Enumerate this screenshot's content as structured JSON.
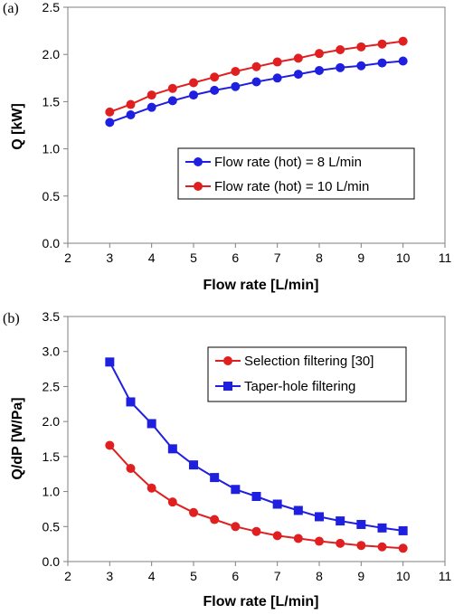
{
  "chart_data": [
    {
      "panel": "(a)",
      "type": "line",
      "xlabel": "Flow rate [L/min]",
      "ylabel": "Q [kW]",
      "xlim": [
        2,
        11
      ],
      "ylim": [
        0.0,
        2.5
      ],
      "xticks": [
        "2",
        "3",
        "4",
        "5",
        "6",
        "7",
        "8",
        "9",
        "10",
        "11"
      ],
      "yticks": [
        "0.0",
        "0.5",
        "1.0",
        "1.5",
        "2.0",
        "2.5"
      ],
      "grid": false,
      "legend_position": "lower-right",
      "x": [
        3.0,
        3.5,
        4.0,
        4.5,
        5.0,
        5.5,
        6.0,
        6.5,
        7.0,
        7.5,
        8.0,
        8.5,
        9.0,
        9.5,
        10.0
      ],
      "series": [
        {
          "name": "Flow rate (hot) = 8 L/min",
          "color": "#1f1fe0",
          "marker": "circle",
          "values": [
            1.28,
            1.36,
            1.44,
            1.51,
            1.57,
            1.62,
            1.66,
            1.71,
            1.75,
            1.79,
            1.83,
            1.86,
            1.88,
            1.91,
            1.93
          ]
        },
        {
          "name": "Flow rate (hot) = 10 L/min",
          "color": "#e02020",
          "marker": "circle",
          "values": [
            1.39,
            1.47,
            1.57,
            1.64,
            1.7,
            1.76,
            1.82,
            1.87,
            1.92,
            1.96,
            2.01,
            2.05,
            2.08,
            2.11,
            2.14
          ]
        }
      ]
    },
    {
      "panel": "(b)",
      "type": "line",
      "xlabel": "Flow rate [L/min]",
      "ylabel": "Q/dP [W/Pa]",
      "xlim": [
        2,
        11
      ],
      "ylim": [
        0.0,
        3.5
      ],
      "xticks": [
        "2",
        "3",
        "4",
        "5",
        "6",
        "7",
        "8",
        "9",
        "10",
        "11"
      ],
      "yticks": [
        "0.0",
        "0.5",
        "1.0",
        "1.5",
        "2.0",
        "2.5",
        "3.0",
        "3.5"
      ],
      "grid": false,
      "legend_position": "top-right",
      "x": [
        3.0,
        3.5,
        4.0,
        4.5,
        5.0,
        5.5,
        6.0,
        6.5,
        7.0,
        7.5,
        8.0,
        8.5,
        9.0,
        9.5,
        10.0
      ],
      "series": [
        {
          "name": "Selection filtering [30]",
          "color": "#e02020",
          "marker": "circle",
          "values": [
            1.66,
            1.33,
            1.05,
            0.85,
            0.7,
            0.6,
            0.5,
            0.43,
            0.37,
            0.33,
            0.29,
            0.26,
            0.23,
            0.21,
            0.19
          ]
        },
        {
          "name": "Taper-hole filtering",
          "color": "#1f1fe0",
          "marker": "square",
          "values": [
            2.85,
            2.28,
            1.97,
            1.61,
            1.38,
            1.2,
            1.03,
            0.93,
            0.82,
            0.73,
            0.64,
            0.58,
            0.53,
            0.48,
            0.44
          ]
        }
      ]
    }
  ]
}
